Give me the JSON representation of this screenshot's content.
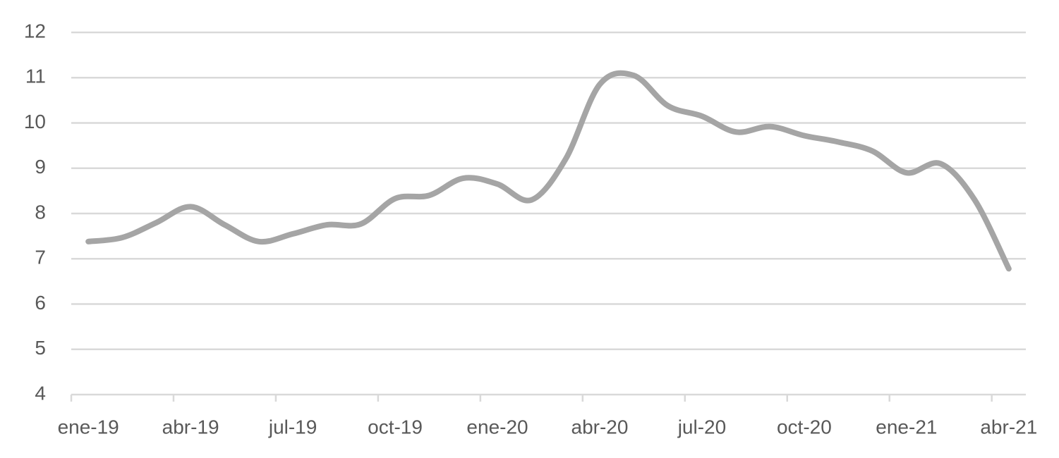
{
  "chart_data": {
    "type": "line",
    "categories": [
      "ene-19",
      null,
      null,
      "abr-19",
      null,
      null,
      "jul-19",
      null,
      null,
      "oct-19",
      null,
      null,
      "ene-20",
      null,
      null,
      "abr-20",
      null,
      null,
      "jul-20",
      null,
      null,
      "oct-20",
      null,
      null,
      "ene-21",
      null,
      null,
      "abr-21"
    ],
    "values": [
      7.38,
      7.47,
      7.8,
      8.15,
      7.75,
      7.38,
      7.55,
      7.75,
      7.77,
      8.33,
      8.4,
      8.78,
      8.65,
      8.3,
      9.2,
      10.85,
      11.05,
      10.38,
      10.15,
      9.8,
      9.92,
      9.72,
      9.58,
      9.38,
      8.9,
      9.1,
      8.3,
      6.78
    ],
    "color": "#a5a5a5",
    "smooth": true,
    "ylim": [
      4,
      12
    ],
    "yticks": [
      4,
      5,
      6,
      7,
      8,
      9,
      10,
      11,
      12
    ],
    "grid": true
  }
}
